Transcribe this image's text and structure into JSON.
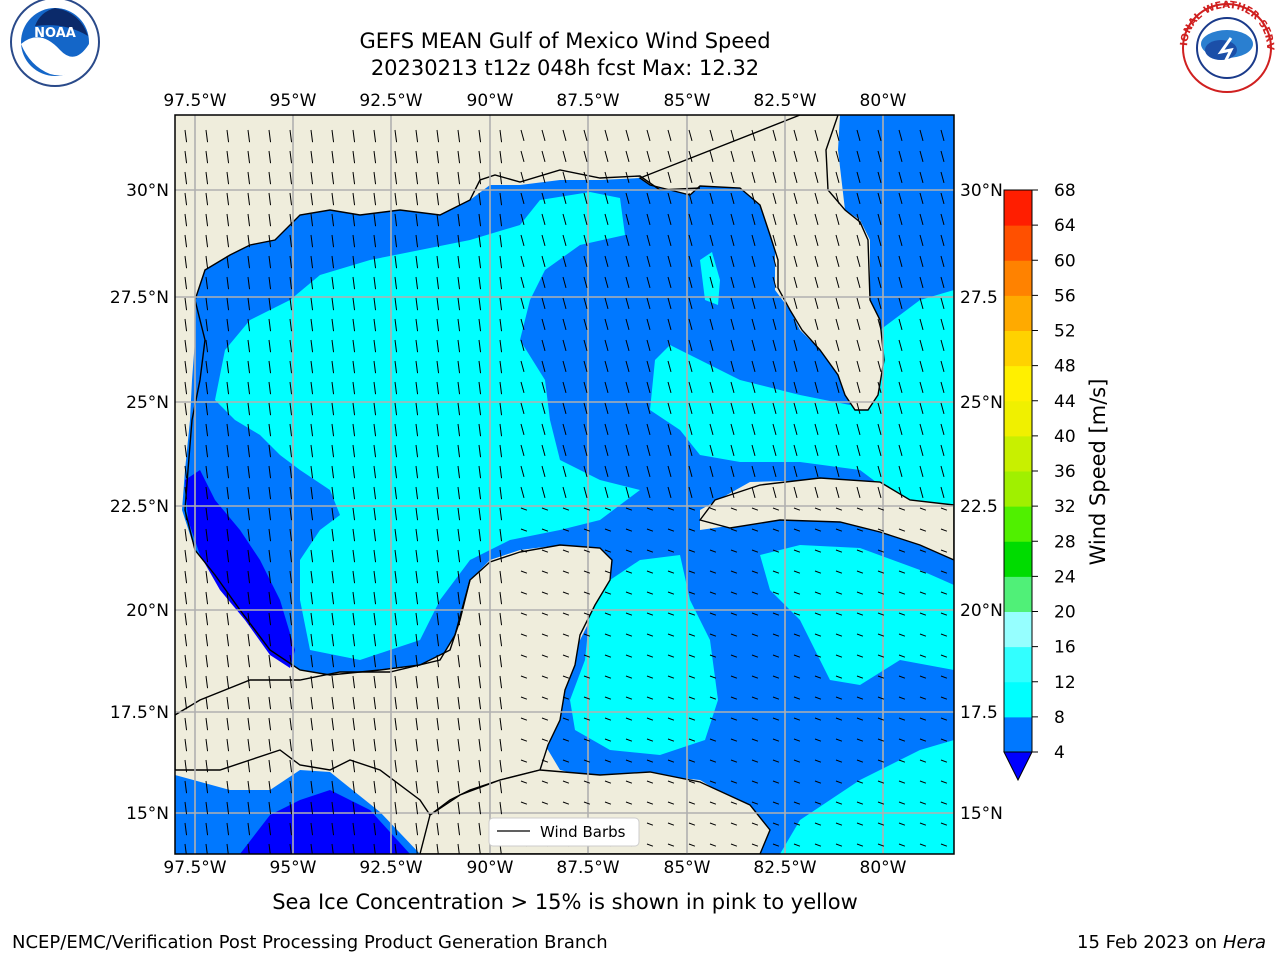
{
  "title_line1": "GEFS MEAN Gulf of Mexico Wind Speed",
  "title_line2": "20230213 t12z 048h fcst   Max: 12.32",
  "caption": "Sea Ice Concentration > 15% is shown in pink to yellow",
  "footer_left": "NCEP/EMC/Verification Post Processing Product Generation Branch",
  "footer_right_date": "15 Feb 2023 on",
  "footer_right_machine": "Hera",
  "logos": {
    "left": "NOAA",
    "right": "NATIONAL WEATHER SERVICE"
  },
  "legend_label": "Wind Barbs",
  "lon_labels": [
    "97.5°W",
    "95°W",
    "92.5°W",
    "90°W",
    "87.5°W",
    "85°W",
    "82.5°W",
    "80°W"
  ],
  "lat_labels_left": [
    "30°N",
    "27.5°N",
    "25°N",
    "22.5°N",
    "20°N",
    "17.5°N",
    "15°N"
  ],
  "lat_labels_right": [
    "30°N",
    "27.5",
    "25°N",
    "22.5",
    "20°N",
    "17.5",
    "15°N"
  ],
  "colorbar": {
    "label": "Wind Speed [m/s]",
    "ticks": [
      "4",
      "8",
      "12",
      "16",
      "20",
      "24",
      "28",
      "32",
      "36",
      "40",
      "44",
      "48",
      "52",
      "56",
      "60",
      "64",
      "68"
    ],
    "colors": [
      "#0078ff",
      "#00ffff",
      "#32ffff",
      "#96ffff",
      "#50f078",
      "#00dc00",
      "#50f000",
      "#a0f000",
      "#c8f000",
      "#f0f000",
      "#fff000",
      "#ffd200",
      "#ffaa00",
      "#ff8200",
      "#ff5000",
      "#ff1e00"
    ],
    "under_color": "#0000ff"
  }
}
